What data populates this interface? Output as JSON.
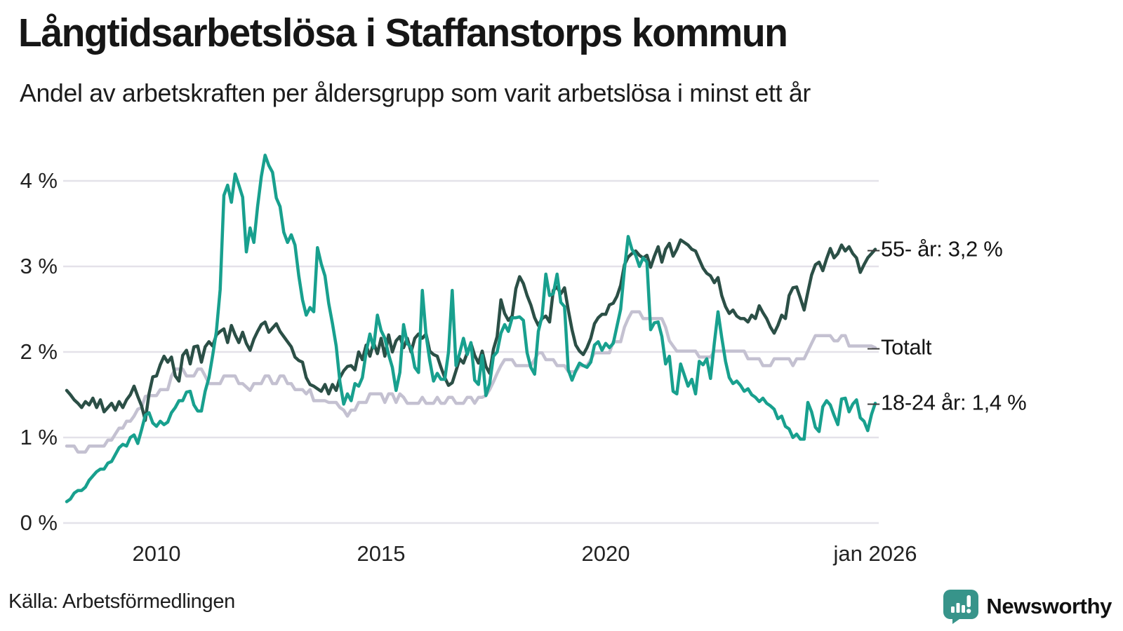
{
  "header": {
    "title": "Långtidsarbetslösa i Staffanstorps kommun",
    "subtitle": "Andel av arbetskraften per åldersgrupp som varit arbetslösa i minst ett år"
  },
  "footer": {
    "source": "Källa: Arbetsförmedlingen",
    "brand_name": "Newsworthy",
    "brand_color": "#37948a",
    "brand_icon": "bar-chart-speech-bubble-icon"
  },
  "colors": {
    "grid": "#e4e2e9",
    "axis_text": "#222222",
    "label_text": "#141414"
  },
  "chart_data": {
    "type": "line",
    "title": "Långtidsarbetslösa i Staffanstorps kommun",
    "xlabel": "",
    "ylabel": "",
    "x_start": "2008-01",
    "x_end": "2026-01",
    "points_per_year": 12,
    "ylim": [
      0,
      4.4
    ],
    "grid": true,
    "legend_position": "line-end-labels-right",
    "end_label_dash": "–",
    "yticks": [
      {
        "value": 0,
        "label": "0 %"
      },
      {
        "value": 1,
        "label": "1 %"
      },
      {
        "value": 2,
        "label": "2 %"
      },
      {
        "value": 3,
        "label": "3 %"
      },
      {
        "value": 4,
        "label": "4 %"
      }
    ],
    "xticks": [
      {
        "year": 2010,
        "label": "2010"
      },
      {
        "year": 2015,
        "label": "2015"
      },
      {
        "year": 2020,
        "label": "2020"
      },
      {
        "year": 2026,
        "label": "jan 2026"
      }
    ],
    "series": [
      {
        "id": "totalt",
        "name": "Totalt",
        "end_label": "Totalt",
        "end_value_label": "",
        "color": "#c4c1d1",
        "values": [
          0.9,
          0.9,
          0.9,
          0.83,
          0.83,
          0.83,
          0.9,
          0.9,
          0.9,
          0.9,
          0.9,
          0.97,
          0.97,
          1.04,
          1.11,
          1.11,
          1.19,
          1.19,
          1.25,
          1.33,
          1.35,
          1.48,
          1.49,
          1.49,
          1.49,
          1.56,
          1.56,
          1.56,
          1.72,
          1.8,
          1.8,
          1.8,
          1.72,
          1.72,
          1.72,
          1.8,
          1.8,
          1.72,
          1.63,
          1.63,
          1.63,
          1.63,
          1.72,
          1.72,
          1.72,
          1.72,
          1.63,
          1.63,
          1.59,
          1.55,
          1.63,
          1.63,
          1.63,
          1.72,
          1.72,
          1.63,
          1.63,
          1.72,
          1.72,
          1.63,
          1.63,
          1.56,
          1.56,
          1.56,
          1.51,
          1.56,
          1.43,
          1.43,
          1.43,
          1.43,
          1.41,
          1.41,
          1.41,
          1.35,
          1.32,
          1.25,
          1.32,
          1.32,
          1.41,
          1.41,
          1.41,
          1.51,
          1.51,
          1.51,
          1.51,
          1.41,
          1.51,
          1.51,
          1.41,
          1.51,
          1.47,
          1.4,
          1.4,
          1.4,
          1.4,
          1.47,
          1.4,
          1.4,
          1.4,
          1.47,
          1.4,
          1.4,
          1.47,
          1.47,
          1.4,
          1.4,
          1.4,
          1.47,
          1.47,
          1.4,
          1.47,
          1.47,
          1.49,
          1.56,
          1.65,
          1.75,
          1.84,
          1.91,
          1.91,
          1.91,
          1.84,
          1.84,
          1.84,
          1.84,
          1.84,
          1.91,
          1.99,
          1.99,
          1.91,
          1.91,
          1.91,
          1.84,
          1.84,
          1.84,
          1.77,
          1.77,
          1.77,
          1.84,
          1.84,
          1.84,
          1.91,
          1.99,
          1.99,
          1.99,
          1.99,
          1.99,
          2.12,
          2.12,
          2.12,
          2.29,
          2.39,
          2.47,
          2.47,
          2.47,
          2.39,
          2.39,
          2.39,
          2.39,
          2.39,
          2.39,
          2.29,
          2.13,
          2.07,
          2.01,
          2.01,
          2.01,
          2.01,
          2.01,
          2.01,
          1.94,
          1.94,
          1.94,
          1.94,
          2.01,
          2.01,
          2.01,
          2.01,
          2.01,
          2.01,
          2.01,
          2.01,
          2.01,
          1.92,
          1.92,
          1.92,
          1.92,
          1.84,
          1.84,
          1.84,
          1.92,
          1.92,
          1.92,
          1.92,
          1.92,
          1.84,
          1.92,
          1.92,
          1.92,
          2.01,
          2.1,
          2.19,
          2.19,
          2.19,
          2.19,
          2.19,
          2.13,
          2.13,
          2.19,
          2.19,
          2.07,
          2.07,
          2.07,
          2.07,
          2.07,
          2.07,
          2.07,
          2.05
        ]
      },
      {
        "id": "55plus",
        "name": "55- år",
        "end_label": "55- år: 3,2 %",
        "end_value_label": "3,2 %",
        "color": "#2b4f46",
        "values": [
          1.55,
          1.5,
          1.44,
          1.4,
          1.35,
          1.42,
          1.38,
          1.46,
          1.35,
          1.44,
          1.3,
          1.35,
          1.4,
          1.32,
          1.42,
          1.35,
          1.44,
          1.5,
          1.6,
          1.48,
          1.37,
          1.2,
          1.51,
          1.71,
          1.72,
          1.85,
          1.95,
          1.88,
          1.94,
          1.72,
          1.66,
          1.96,
          2.02,
          1.86,
          2.06,
          2.07,
          1.88,
          2.06,
          2.12,
          2.07,
          2.2,
          2.24,
          2.27,
          2.11,
          2.31,
          2.2,
          2.11,
          2.23,
          2.1,
          2.02,
          2.15,
          2.24,
          2.32,
          2.35,
          2.23,
          2.28,
          2.33,
          2.24,
          2.18,
          2.12,
          2.06,
          1.94,
          1.9,
          1.88,
          1.7,
          1.62,
          1.6,
          1.57,
          1.54,
          1.62,
          1.51,
          1.62,
          1.55,
          1.7,
          1.78,
          1.83,
          1.84,
          1.79,
          2.0,
          1.91,
          2.08,
          1.95,
          2.11,
          1.98,
          2.16,
          1.95,
          2.2,
          2.0,
          2.13,
          2.18,
          2.05,
          2.16,
          2.0,
          2.16,
          2.21,
          2.16,
          2.21,
          2.01,
          1.97,
          1.95,
          1.82,
          1.7,
          1.61,
          1.64,
          1.78,
          1.92,
          1.87,
          1.99,
          2.1,
          1.96,
          1.87,
          2.01,
          1.83,
          1.75,
          2.03,
          2.18,
          2.61,
          2.45,
          2.37,
          2.42,
          2.74,
          2.88,
          2.8,
          2.66,
          2.55,
          2.4,
          2.31,
          2.39,
          2.42,
          2.35,
          2.72,
          2.76,
          2.68,
          2.75,
          2.49,
          2.26,
          2.08,
          2.01,
          1.97,
          2.05,
          2.16,
          2.33,
          2.4,
          2.44,
          2.44,
          2.55,
          2.57,
          2.65,
          2.78,
          3.02,
          3.11,
          3.15,
          3.18,
          3.13,
          3.1,
          3.13,
          2.99,
          3.12,
          3.23,
          3.05,
          3.2,
          3.27,
          3.12,
          3.2,
          3.31,
          3.28,
          3.25,
          3.2,
          3.18,
          3.08,
          2.98,
          2.92,
          2.89,
          2.81,
          2.87,
          2.66,
          2.53,
          2.45,
          2.49,
          2.42,
          2.39,
          2.39,
          2.35,
          2.43,
          2.39,
          2.54,
          2.46,
          2.39,
          2.29,
          2.22,
          2.31,
          2.43,
          2.39,
          2.66,
          2.75,
          2.76,
          2.63,
          2.49,
          2.7,
          2.9,
          3.02,
          3.05,
          2.95,
          3.09,
          3.21,
          3.1,
          3.15,
          3.25,
          3.18,
          3.23,
          3.15,
          3.1,
          2.93,
          3.02,
          3.1,
          3.15,
          3.2
        ]
      },
      {
        "id": "18-24",
        "name": "18-24 år",
        "end_label": "18-24 år: 1,4 %",
        "end_value_label": "1,4 %",
        "color": "#18a08e",
        "values": [
          0.25,
          0.28,
          0.35,
          0.38,
          0.38,
          0.42,
          0.5,
          0.55,
          0.6,
          0.63,
          0.63,
          0.7,
          0.72,
          0.8,
          0.88,
          0.92,
          0.9,
          1.0,
          1.03,
          0.93,
          1.09,
          1.26,
          1.29,
          1.17,
          1.13,
          1.19,
          1.15,
          1.18,
          1.29,
          1.35,
          1.43,
          1.43,
          1.53,
          1.54,
          1.38,
          1.31,
          1.31,
          1.54,
          1.7,
          1.96,
          2.24,
          2.73,
          3.83,
          3.95,
          3.75,
          4.08,
          3.95,
          3.81,
          3.17,
          3.45,
          3.28,
          3.7,
          4.05,
          4.3,
          4.18,
          4.1,
          3.8,
          3.7,
          3.4,
          3.28,
          3.37,
          3.25,
          2.89,
          2.61,
          2.43,
          2.52,
          2.47,
          3.22,
          3.03,
          2.89,
          2.57,
          2.33,
          2.07,
          1.65,
          1.39,
          1.51,
          1.43,
          1.63,
          1.6,
          1.7,
          2.0,
          2.21,
          2.05,
          2.43,
          2.25,
          2.16,
          1.97,
          1.82,
          1.55,
          1.76,
          2.32,
          2.1,
          2.05,
          1.82,
          1.76,
          2.72,
          2.2,
          1.9,
          1.66,
          1.75,
          1.68,
          1.68,
          2.0,
          2.72,
          1.84,
          1.99,
          2.16,
          1.97,
          2.11,
          1.67,
          1.62,
          1.96,
          1.49,
          1.63,
          1.95,
          2.0,
          2.22,
          2.32,
          2.24,
          2.4,
          2.4,
          2.41,
          2.37,
          1.99,
          1.82,
          1.74,
          2.24,
          2.42,
          2.91,
          2.66,
          2.68,
          2.91,
          2.58,
          2.53,
          1.79,
          1.67,
          1.78,
          1.87,
          1.84,
          1.82,
          1.88,
          2.08,
          2.12,
          2.02,
          2.1,
          2.05,
          2.1,
          2.3,
          2.5,
          2.97,
          3.35,
          3.2,
          3.13,
          3.0,
          3.1,
          3.05,
          2.26,
          2.34,
          2.35,
          2.18,
          1.86,
          1.95,
          1.54,
          1.51,
          1.86,
          1.73,
          1.6,
          1.68,
          1.51,
          1.89,
          1.85,
          1.92,
          1.69,
          2.1,
          2.47,
          2.17,
          1.89,
          1.7,
          1.63,
          1.66,
          1.61,
          1.54,
          1.57,
          1.5,
          1.47,
          1.42,
          1.46,
          1.4,
          1.37,
          1.33,
          1.22,
          1.25,
          1.13,
          1.1,
          1.0,
          1.04,
          0.98,
          0.98,
          1.41,
          1.3,
          1.12,
          1.07,
          1.36,
          1.43,
          1.38,
          1.26,
          1.15,
          1.45,
          1.46,
          1.3,
          1.39,
          1.44,
          1.23,
          1.19,
          1.08,
          1.27,
          1.4
        ]
      }
    ]
  }
}
